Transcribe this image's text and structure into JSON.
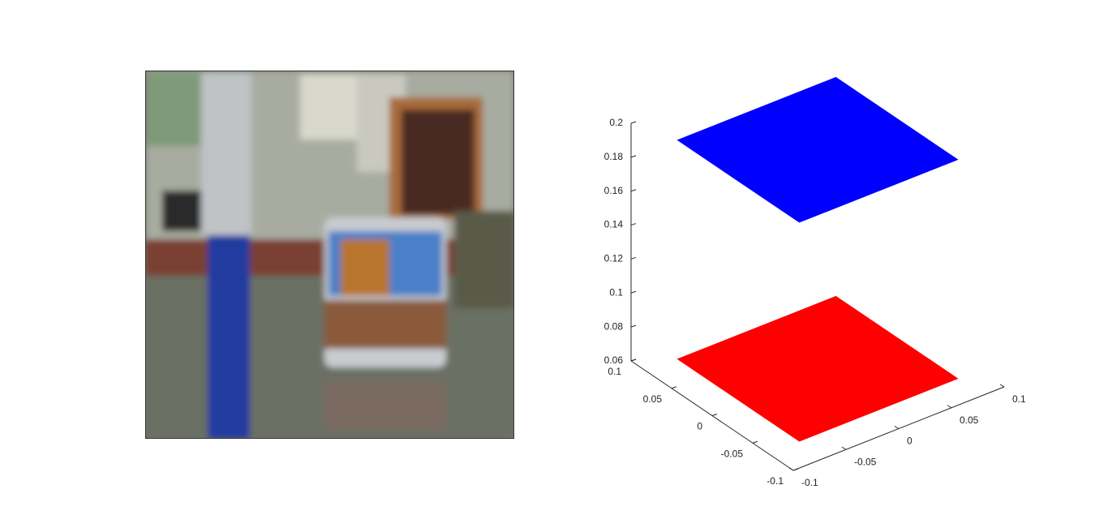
{
  "chart_data": {
    "type": "surface3d",
    "xlim": [
      -0.1,
      0.1
    ],
    "ylim": [
      -0.1,
      0.1
    ],
    "zlim": [
      0.06,
      0.2
    ],
    "xticks": [
      -0.1,
      -0.05,
      0,
      0.05,
      0.1
    ],
    "yticks": [
      -0.1,
      -0.05,
      0,
      0.05,
      0.1
    ],
    "zticks": [
      0.06,
      0.08,
      0.1,
      0.12,
      0.14,
      0.16,
      0.18,
      0.2
    ],
    "series": [
      {
        "color": "#ff0000",
        "x": [
          -0.075,
          0.075
        ],
        "y": [
          -0.075,
          0.075
        ],
        "z": 0.063
      },
      {
        "color": "#0000ff",
        "x": [
          -0.075,
          0.075
        ],
        "y": [
          -0.075,
          0.075
        ],
        "z": 0.192
      }
    ]
  }
}
